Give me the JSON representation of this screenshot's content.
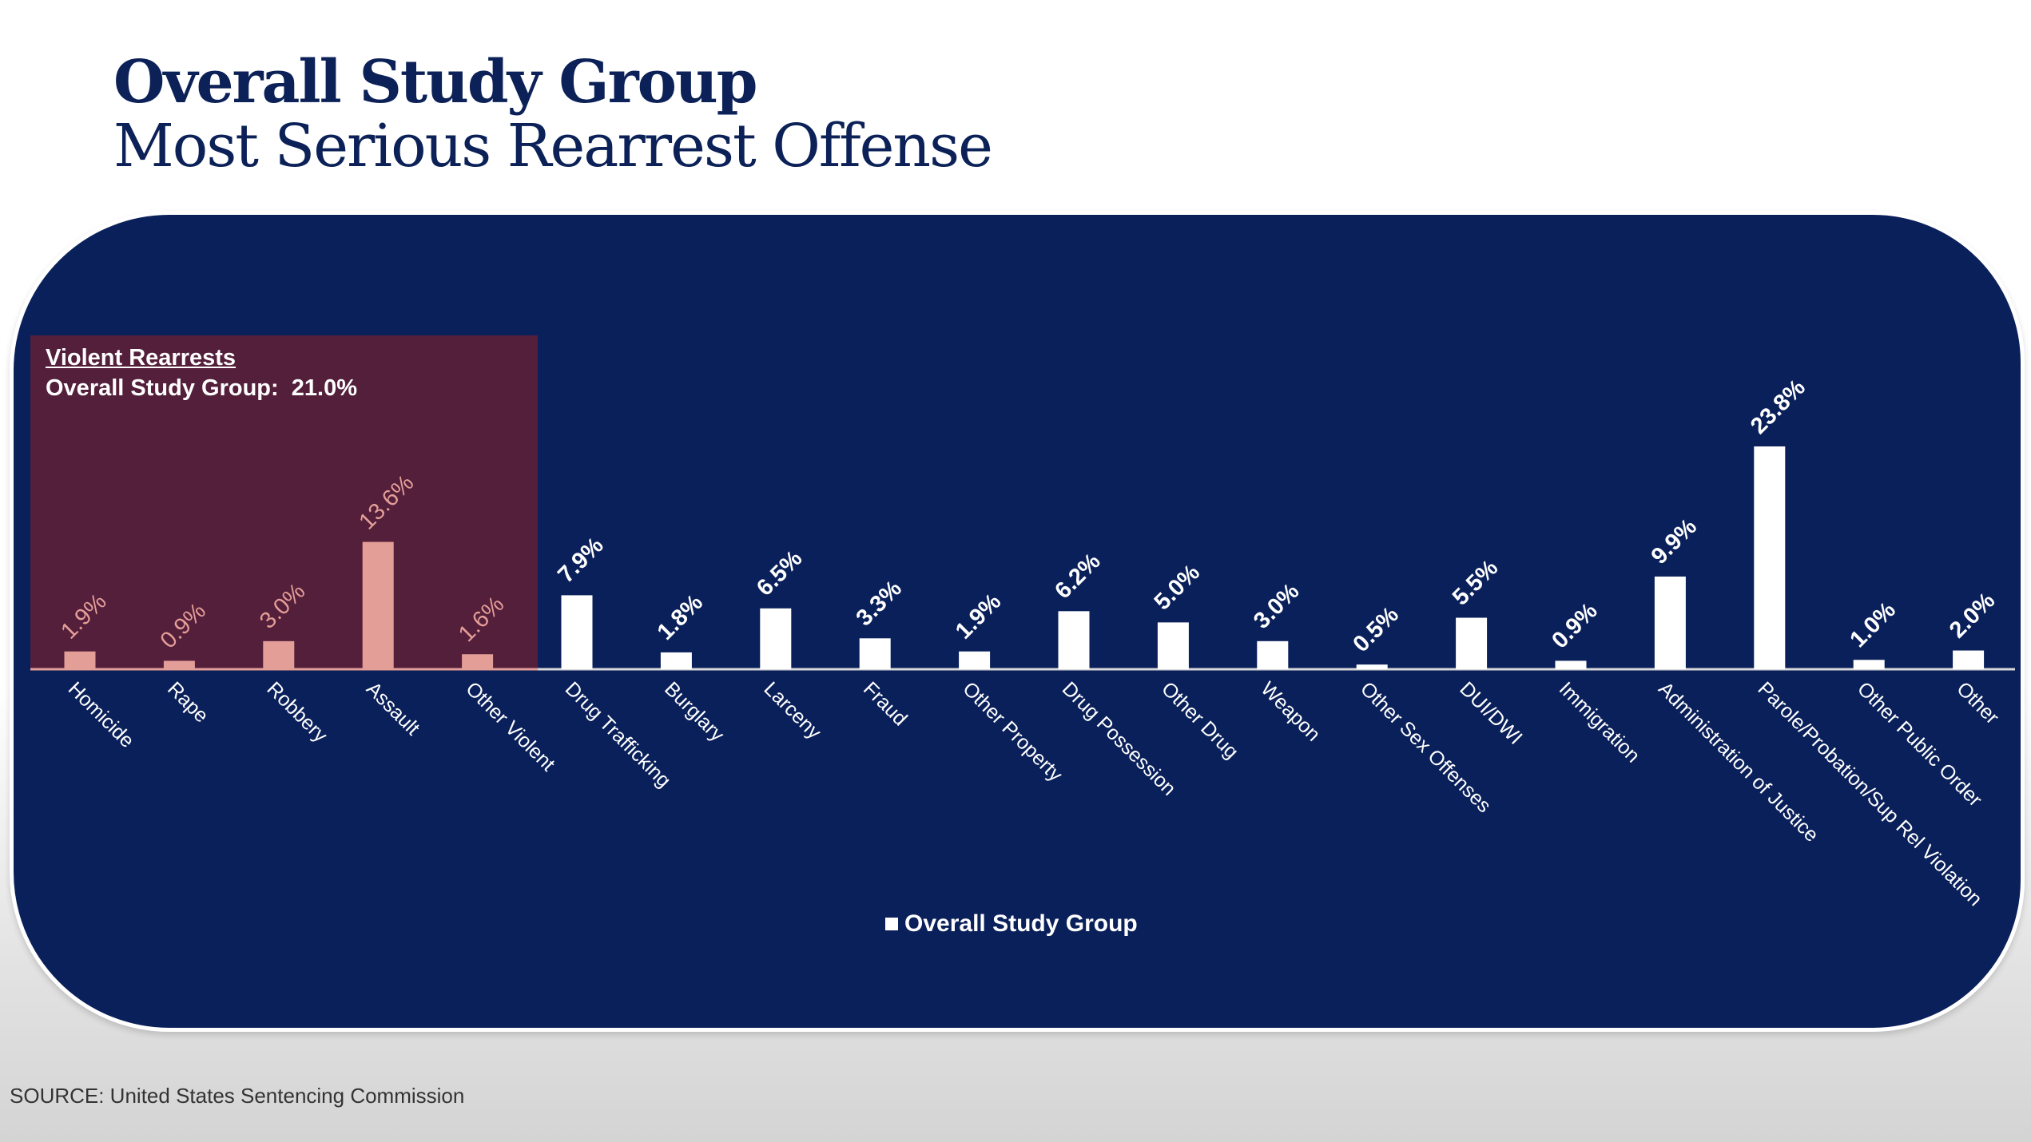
{
  "title_line1": "Overall Study Group",
  "title_line2": "Most Serious Rearrest Offense",
  "violent_box": {
    "title": "Violent Rearrests",
    "subtitle": "Overall Study Group:  21.0%"
  },
  "source": "SOURCE:  United States Sentencing Commission",
  "colors": {
    "panel": "#0a205a",
    "violent_box": "#541f3b",
    "violent_bar": "#e49e98",
    "bar": "#ffffff"
  },
  "chart_data": {
    "type": "bar",
    "title": "Most Serious Rearrest Offense",
    "xlabel": "",
    "ylabel": "",
    "ylim": [
      0,
      24
    ],
    "legend": "bottom-center",
    "grid": false,
    "categories": [
      "Homicide",
      "Rape",
      "Robbery",
      "Assault",
      "Other Violent",
      "Drug Trafficking",
      "Burglary",
      "Larceny",
      "Fraud",
      "Other Property",
      "Drug Possession",
      "Other Drug",
      "Weapon",
      "Other Sex Offenses",
      "DUI/DWI",
      "Immigration",
      "Administration of Justice",
      "Parole/Probation/Sup Rel Violation",
      "Other Public Order",
      "Other"
    ],
    "series": [
      {
        "name": "Overall Study Group",
        "values": [
          1.9,
          0.9,
          3.0,
          13.6,
          1.6,
          7.9,
          1.8,
          6.5,
          3.3,
          1.9,
          6.2,
          5.0,
          3.0,
          0.5,
          5.5,
          0.9,
          9.9,
          23.8,
          1.0,
          2.0
        ],
        "labels": [
          "1.9%",
          "0.9%",
          "3.0%",
          "13.6%",
          "1.6%",
          "7.9%",
          "1.8%",
          "6.5%",
          "3.3%",
          "1.9%",
          "6.2%",
          "5.0%",
          "3.0%",
          "0.5%",
          "5.5%",
          "0.9%",
          "9.9%",
          "23.8%",
          "1.0%",
          "2.0%"
        ]
      }
    ],
    "violent_count": 5
  }
}
